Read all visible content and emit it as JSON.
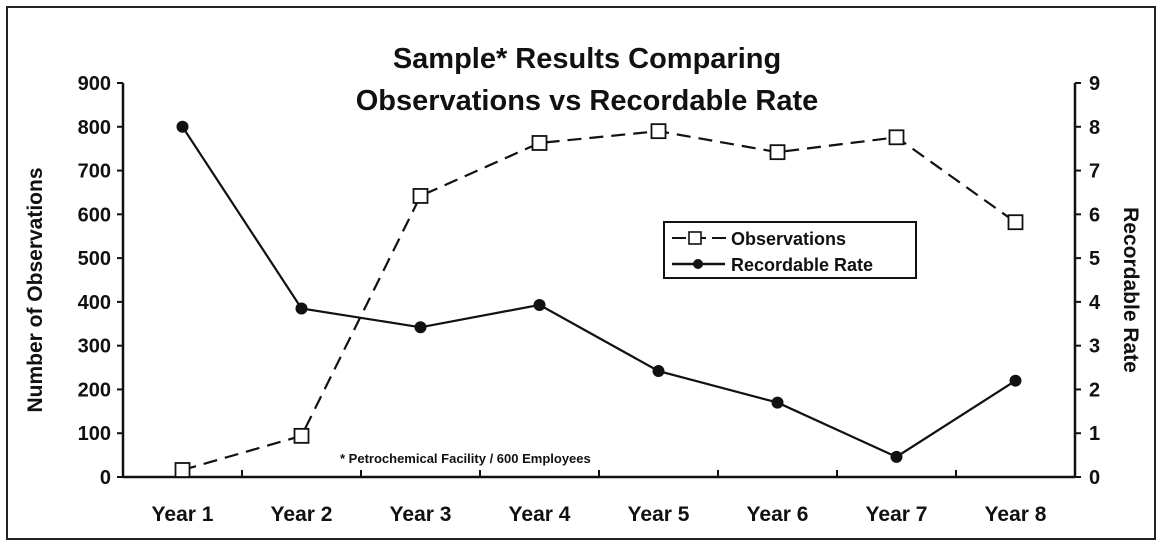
{
  "chart_data": {
    "type": "line",
    "title": [
      "Sample* Results Comparing",
      "Observations vs Recordable Rate"
    ],
    "footnote": "* Petrochemical Facility / 600 Employees",
    "categories": [
      "Year 1",
      "Year 2",
      "Year 3",
      "Year 4",
      "Year 5",
      "Year 6",
      "Year 7",
      "Year 8"
    ],
    "y_left": {
      "label": "Number of Observations",
      "range": [
        0,
        900
      ],
      "ticks": [
        "0",
        "100",
        "200",
        "300",
        "400",
        "500",
        "600",
        "700",
        "800",
        "900"
      ]
    },
    "y_right": {
      "label": "Recordable Rate",
      "range": [
        0,
        9
      ],
      "ticks": [
        "0",
        "1",
        "2",
        "3",
        "4",
        "5",
        "6",
        "7",
        "8",
        "9"
      ]
    },
    "series": [
      {
        "name": "Observations",
        "axis": "left",
        "style": "dashed",
        "marker": "open-square",
        "values": [
          16,
          94,
          642,
          763,
          790,
          742,
          776,
          582
        ]
      },
      {
        "name": "Recordable Rate",
        "axis": "right",
        "style": "solid",
        "marker": "filled-circle",
        "values": [
          8.0,
          3.85,
          3.42,
          3.93,
          2.42,
          1.7,
          0.46,
          2.2
        ]
      }
    ],
    "legend": "center-right",
    "grid": false
  }
}
